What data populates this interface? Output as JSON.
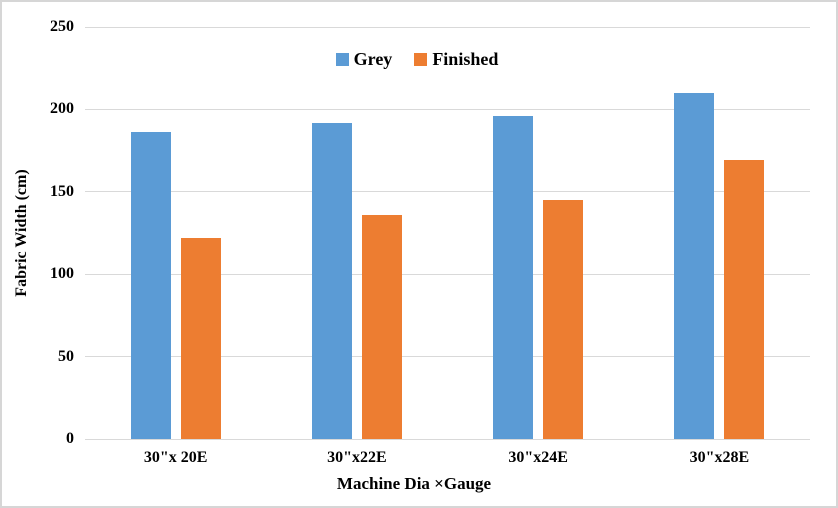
{
  "chart_data": {
    "type": "bar",
    "categories": [
      "30\"x 20E",
      "30\"x22E",
      "30\"x24E",
      "30\"x28E"
    ],
    "series": [
      {
        "name": "Grey",
        "color": "#5B9BD5",
        "values": [
          186,
          192,
          196,
          210
        ]
      },
      {
        "name": "Finished",
        "color": "#ED7D31",
        "values": [
          122,
          136,
          145,
          169
        ]
      }
    ],
    "xlabel": "Machine Dia ×Gauge",
    "ylabel": "Fabric Width (cm)",
    "ylim": [
      0,
      250
    ],
    "yticks": [
      0,
      50,
      100,
      150,
      200,
      250
    ],
    "grid": "horizontal",
    "legend_position": "top-center",
    "colors": {
      "gridline": "#D9D9D9",
      "axis_line": "#D9D9D9",
      "text": "#000000",
      "frame_border": "#D6D6D6",
      "background": "#FFFFFF"
    }
  }
}
